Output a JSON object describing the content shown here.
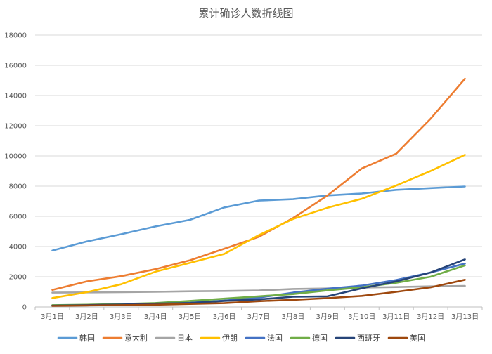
{
  "chart_data": {
    "type": "line",
    "title": "累计确诊人数折线图",
    "xlabel": "",
    "ylabel": "",
    "categories": [
      "3月1日",
      "3月2日",
      "3月3日",
      "3月4日",
      "3月5日",
      "3月6日",
      "3月7日",
      "3月8日",
      "3月9日",
      "3月10日",
      "3月11日",
      "3月12日",
      "3月13日"
    ],
    "ylim": [
      0,
      18000
    ],
    "yticks": [
      0,
      2000,
      4000,
      6000,
      8000,
      10000,
      12000,
      14000,
      16000,
      18000
    ],
    "grid": "horizontal",
    "legend_position": "bottom",
    "series": [
      {
        "name": "韩国",
        "color": "#5B9BD5",
        "values": [
          3736,
          4335,
          4812,
          5328,
          5766,
          6593,
          7041,
          7134,
          7382,
          7513,
          7755,
          7869,
          7979
        ]
      },
      {
        "name": "意大利",
        "color": "#ED7D31",
        "values": [
          1128,
          1694,
          2036,
          2502,
          3089,
          3858,
          4636,
          5883,
          7375,
          9172,
          10149,
          12462,
          15113
        ]
      },
      {
        "name": "日本",
        "color": "#A5A5A5",
        "values": [
          950,
          961,
          981,
          999,
          1036,
          1057,
          1089,
          1190,
          1225,
          1278,
          1317,
          1361,
          1390
        ]
      },
      {
        "name": "伊朗",
        "color": "#FFC000",
        "values": [
          593,
          978,
          1501,
          2336,
          2922,
          3513,
          4747,
          5823,
          6566,
          7161,
          8042,
          9000,
          10075
        ]
      },
      {
        "name": "法国",
        "color": "#4472C4",
        "values": [
          100,
          130,
          191,
          212,
          285,
          423,
          613,
          949,
          1209,
          1412,
          1784,
          2281,
          2876
        ]
      },
      {
        "name": "德国",
        "color": "#70AD47",
        "values": [
          120,
          150,
          196,
          262,
          400,
          550,
          700,
          850,
          1100,
          1300,
          1600,
          2000,
          2750
        ]
      },
      {
        "name": "西班牙",
        "color": "#264478",
        "values": [
          84,
          120,
          165,
          222,
          259,
          400,
          500,
          673,
          700,
          1231,
          1695,
          2277,
          3146
        ]
      },
      {
        "name": "美国",
        "color": "#9E480E",
        "values": [
          70,
          100,
          120,
          150,
          200,
          250,
          380,
          470,
          580,
          730,
          1000,
          1300,
          1800
        ]
      }
    ]
  }
}
